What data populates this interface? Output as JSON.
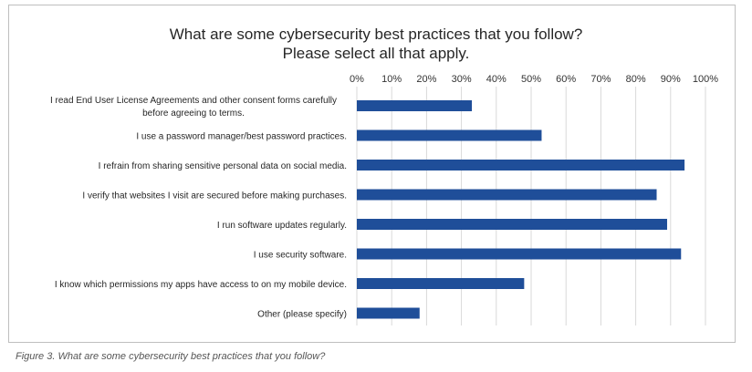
{
  "chart_data": {
    "type": "bar",
    "orientation": "horizontal",
    "title": "What are some cybersecurity best practices that you follow?",
    "subtitle": "Please select all that apply.",
    "categories": [
      [
        "I read End User License Agreements and other consent forms carefully",
        "before agreeing to terms."
      ],
      [
        "I use a password manager/best password practices."
      ],
      [
        "I refrain from sharing sensitive personal data on social media."
      ],
      [
        "I verify that websites I visit are secured before making purchases."
      ],
      [
        "I run software updates regularly."
      ],
      [
        "I use security software."
      ],
      [
        "I know which permissions my apps have access to on my mobile device."
      ],
      [
        "Other (please specify)"
      ]
    ],
    "values": [
      33,
      53,
      94,
      86,
      89,
      93,
      48,
      18
    ],
    "xlim": [
      0,
      100
    ],
    "x_ticks": [
      "0%",
      "10%",
      "20%",
      "30%",
      "40%",
      "50%",
      "60%",
      "70%",
      "80%",
      "90%",
      "100%"
    ],
    "x_axis_position": "top",
    "grid": true,
    "legend": "none",
    "bar_color": "#1f4e99"
  },
  "caption": "Figure 3. What are some cybersecurity best practices that you follow?"
}
